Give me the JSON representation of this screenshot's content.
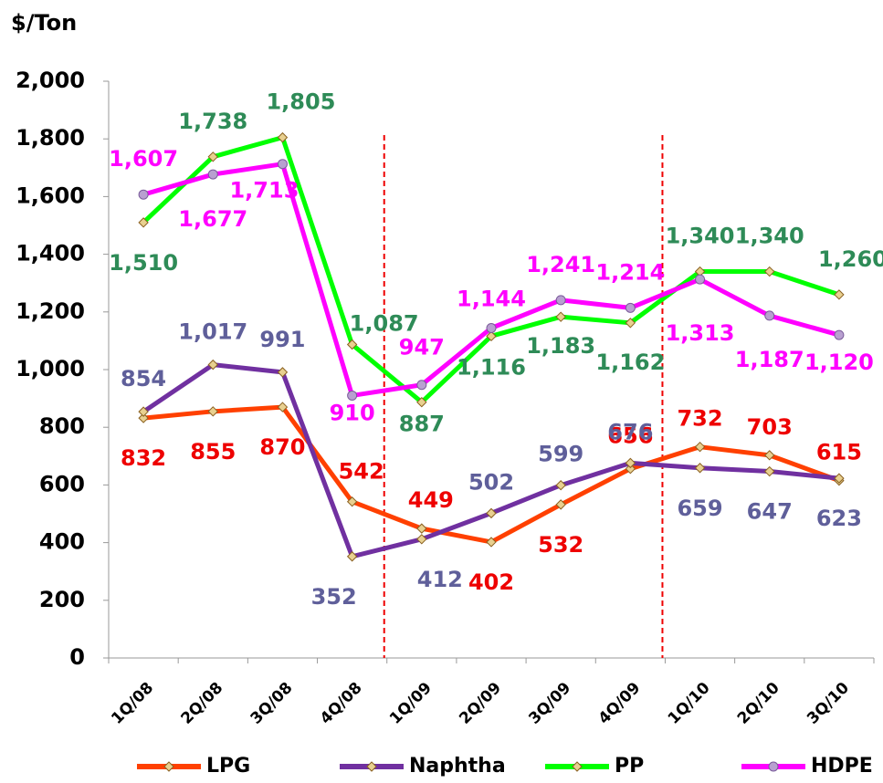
{
  "chart_data": {
    "type": "line",
    "y_label": "$/Ton",
    "categories": [
      "1Q/08",
      "2Q/08",
      "3Q/08",
      "4Q/08",
      "1Q/09",
      "2Q/09",
      "3Q/09",
      "4Q/09",
      "1Q/10",
      "2Q/10",
      "3Q/10"
    ],
    "series": [
      {
        "name": "LPG",
        "color": "#ff4000",
        "label_color": "#ee0000",
        "values": [
          832,
          855,
          870,
          542,
          449,
          402,
          532,
          656,
          732,
          703,
          615
        ]
      },
      {
        "name": "Naphtha",
        "color": "#7030a0",
        "label_color": "#5f5f9a",
        "values": [
          854,
          1017,
          991,
          352,
          412,
          502,
          599,
          676,
          659,
          647,
          623
        ],
        "value_labels": [
          "854",
          "1,017",
          "991",
          "352",
          "412",
          "502",
          "599",
          "676",
          "659",
          "647",
          "623"
        ]
      },
      {
        "name": "PP",
        "color": "#00ff00",
        "label_color": "#2e8b57",
        "values": [
          1510,
          1738,
          1805,
          1087,
          887,
          1116,
          1183,
          1162,
          1340,
          1340,
          1260
        ],
        "value_labels": [
          "1,510",
          "1,738",
          "1,805",
          "1,087",
          "887",
          "1,116",
          "1,183",
          "1,162",
          "1,340",
          "1,340",
          "1,260"
        ]
      },
      {
        "name": "HDPE",
        "color": "#ff00ff",
        "label_color": "#ff00ff",
        "values": [
          1607,
          1677,
          1713,
          910,
          947,
          1144,
          1241,
          1214,
          1313,
          1187,
          1120
        ],
        "value_labels": [
          "1,607",
          "1,677",
          "1,713",
          "910",
          "947",
          "1,144",
          "1,241",
          "1,214",
          "1,313",
          "1,187",
          "1,120"
        ]
      }
    ],
    "ylim": [
      0,
      2000
    ],
    "yticks": [
      0,
      200,
      400,
      600,
      800,
      {
        "value": 1000,
        "label": "1,000"
      },
      {
        "value": 1200,
        "label": "1,200"
      },
      {
        "value": 1400,
        "label": "1,400"
      },
      {
        "value": 1600,
        "label": "1,600"
      },
      {
        "value": 1800,
        "label": "1,800"
      },
      {
        "value": 2000,
        "label": "2,000"
      }
    ],
    "grid": false,
    "legend": "bottom"
  }
}
